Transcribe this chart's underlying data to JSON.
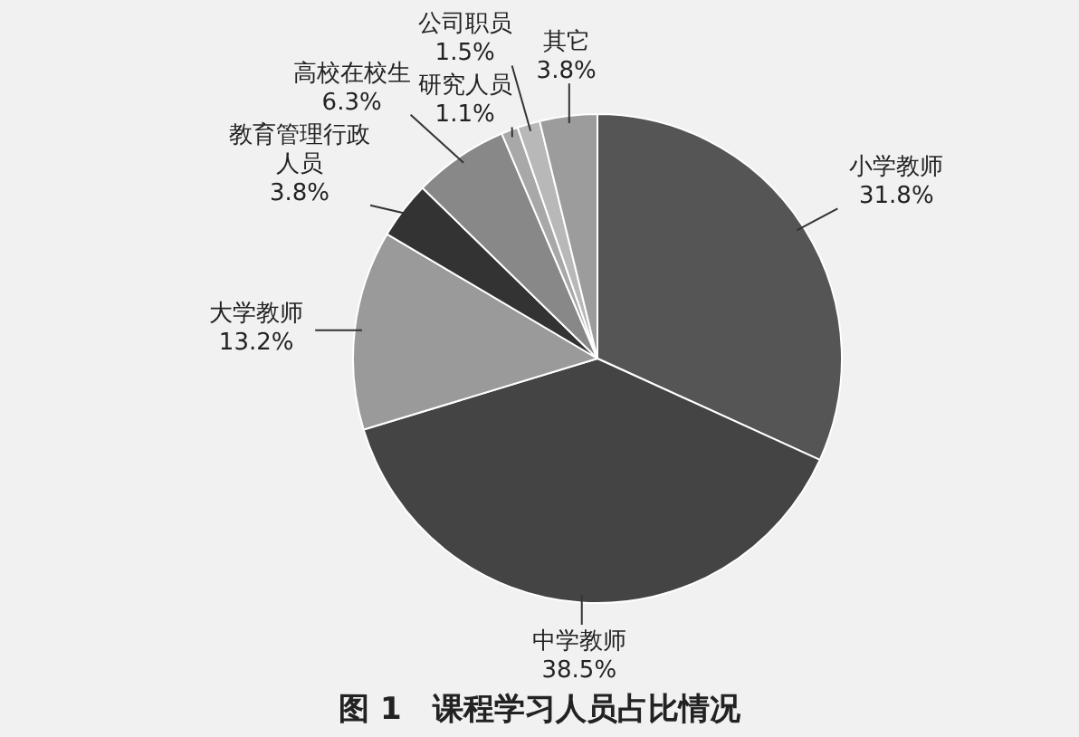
{
  "chart_data": {
    "type": "pie",
    "title": "图 1　课程学习人员占比情况",
    "categories": [
      "小学教师",
      "中学教师",
      "大学教师",
      "教育管理行政人员",
      "高校在校生",
      "研究人员",
      "公司职员",
      "其它"
    ],
    "values": [
      31.8,
      38.5,
      13.2,
      3.8,
      6.3,
      1.1,
      1.5,
      3.8
    ],
    "value_labels": [
      "31.8%",
      "38.5%",
      "13.2%",
      "3.8%",
      "6.3%",
      "1.1%",
      "1.5%",
      "3.8%"
    ],
    "colors": [
      "#555555",
      "#444444",
      "#9a9a9a",
      "#333333",
      "#888888",
      "#a8a8a8",
      "#b8b8b8",
      "#9c9c9c"
    ]
  }
}
